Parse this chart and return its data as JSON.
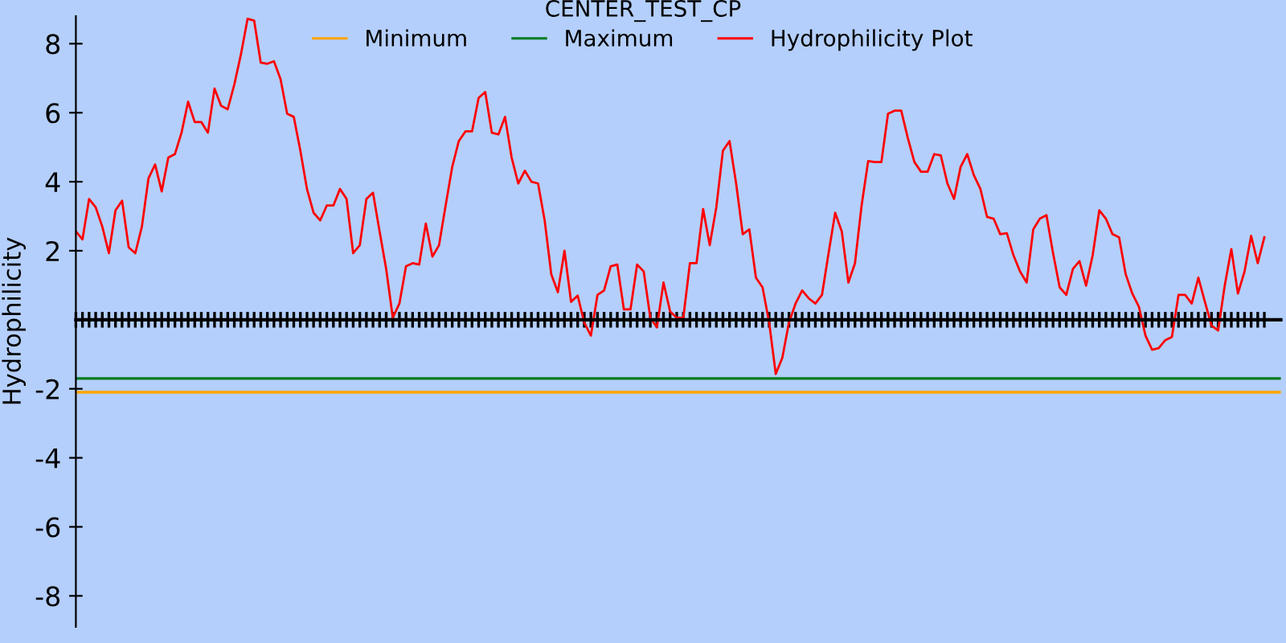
{
  "chart_data": {
    "type": "line",
    "title": "CENTER_TEST_CP",
    "ylabel": "Hydrophilicity",
    "categories": [
      null,
      null,
      null,
      null,
      null,
      null,
      null,
      null,
      null,
      null,
      null,
      null,
      null,
      null,
      null,
      null,
      null,
      null,
      null,
      null,
      null,
      null,
      null,
      null,
      null,
      null,
      null,
      null,
      null,
      null,
      null,
      null,
      null,
      null,
      null,
      null,
      null,
      null,
      null,
      null,
      null,
      null,
      null,
      null,
      null,
      null,
      null,
      null,
      null,
      null,
      null,
      null,
      null,
      null,
      null,
      null,
      null,
      null,
      null,
      null,
      null,
      null,
      null,
      null,
      null,
      null,
      null,
      null,
      null,
      null,
      null,
      null,
      null,
      null,
      null,
      null,
      null,
      null,
      null,
      null,
      null,
      null,
      null,
      null,
      null,
      null,
      null,
      null,
      null,
      null,
      null,
      null,
      null,
      null,
      null,
      null,
      null,
      null,
      null,
      null,
      null,
      null,
      null,
      null,
      null,
      null,
      null,
      null,
      null,
      null,
      null,
      null,
      null,
      null,
      null,
      null,
      null,
      null,
      null,
      null,
      null,
      null,
      null,
      null,
      null,
      null,
      null,
      null,
      null,
      null,
      null,
      null,
      null,
      null,
      null,
      null,
      null,
      null,
      null,
      null,
      null,
      null,
      null,
      null,
      null,
      null,
      null,
      null,
      null,
      null,
      null,
      null,
      null,
      null,
      null,
      null,
      null,
      null,
      null,
      null,
      null,
      null,
      null,
      null,
      null,
      null,
      null,
      null,
      null,
      null,
      null,
      null,
      null,
      null,
      null,
      null,
      null,
      null,
      null,
      null,
      null
    ],
    "series": [
      {
        "name": "Hydrophilicity Plot",
        "color": "#ff0000",
        "values": [
          2.56,
          2.33,
          3.5,
          3.26,
          2.7,
          1.93,
          3.17,
          3.45,
          2.1,
          1.93,
          2.7,
          4.1,
          4.5,
          3.72,
          4.7,
          4.8,
          5.42,
          6.32,
          5.73,
          5.73,
          5.42,
          6.7,
          6.2,
          6.1,
          6.82,
          7.69,
          8.72,
          8.67,
          7.45,
          7.42,
          7.49,
          6.97,
          5.97,
          5.88,
          4.9,
          3.79,
          3.1,
          2.88,
          3.31,
          3.31,
          3.79,
          3.5,
          1.93,
          2.16,
          3.5,
          3.68,
          2.56,
          1.47,
          0.06,
          0.47,
          1.55,
          1.64,
          1.6,
          2.79,
          1.83,
          2.16,
          3.31,
          4.43,
          5.18,
          5.46,
          5.46,
          6.43,
          6.6,
          5.42,
          5.37,
          5.88,
          4.7,
          3.95,
          4.32,
          4.0,
          3.95,
          2.88,
          1.32,
          0.8,
          2.0,
          0.52,
          0.7,
          -0.08,
          -0.46,
          0.72,
          0.85,
          1.55,
          1.6,
          0.3,
          0.3,
          1.6,
          1.4,
          0.06,
          -0.22,
          1.08,
          0.24,
          0.06,
          0.06,
          1.64,
          1.64,
          3.21,
          2.16,
          3.26,
          4.9,
          5.18,
          3.95,
          2.48,
          2.62,
          1.22,
          0.94,
          -0.08,
          -1.57,
          -1.1,
          -0.08,
          0.47,
          0.85,
          0.62,
          0.47,
          0.72,
          1.93,
          3.1,
          2.56,
          1.08,
          1.64,
          3.31,
          4.6,
          4.57,
          4.57,
          5.97,
          6.06,
          6.06,
          5.27,
          4.57,
          4.29,
          4.29,
          4.8,
          4.76,
          3.95,
          3.5,
          4.43,
          4.8,
          4.19,
          3.79,
          2.98,
          2.93,
          2.48,
          2.51,
          1.87,
          1.4,
          1.08,
          2.62,
          2.93,
          3.03,
          1.93,
          0.94,
          0.72,
          1.47,
          1.7,
          0.99,
          1.87,
          3.17,
          2.93,
          2.48,
          2.39,
          1.32,
          0.76,
          0.38,
          -0.46,
          -0.87,
          -0.82,
          -0.59,
          -0.5,
          0.72,
          0.72,
          0.47,
          1.22,
          0.52,
          -0.17,
          -0.31,
          0.99,
          2.05,
          0.76,
          1.4,
          2.43,
          1.64,
          2.39
        ]
      }
    ],
    "ref_lines": [
      {
        "axis": "y",
        "value": -2.1,
        "label": "Minimum",
        "color": "#ffa500"
      },
      {
        "axis": "y",
        "value": -1.7,
        "label": "Maximum",
        "color": "#007a1f"
      }
    ],
    "ylim": [
      -8.9,
      8.8
    ],
    "yticks": [
      -8,
      -6,
      -4,
      -2,
      2,
      4,
      6,
      8
    ],
    "tick_labels": "y",
    "grid": false,
    "legend": "top",
    "marker": "none",
    "line_style": "solid"
  }
}
